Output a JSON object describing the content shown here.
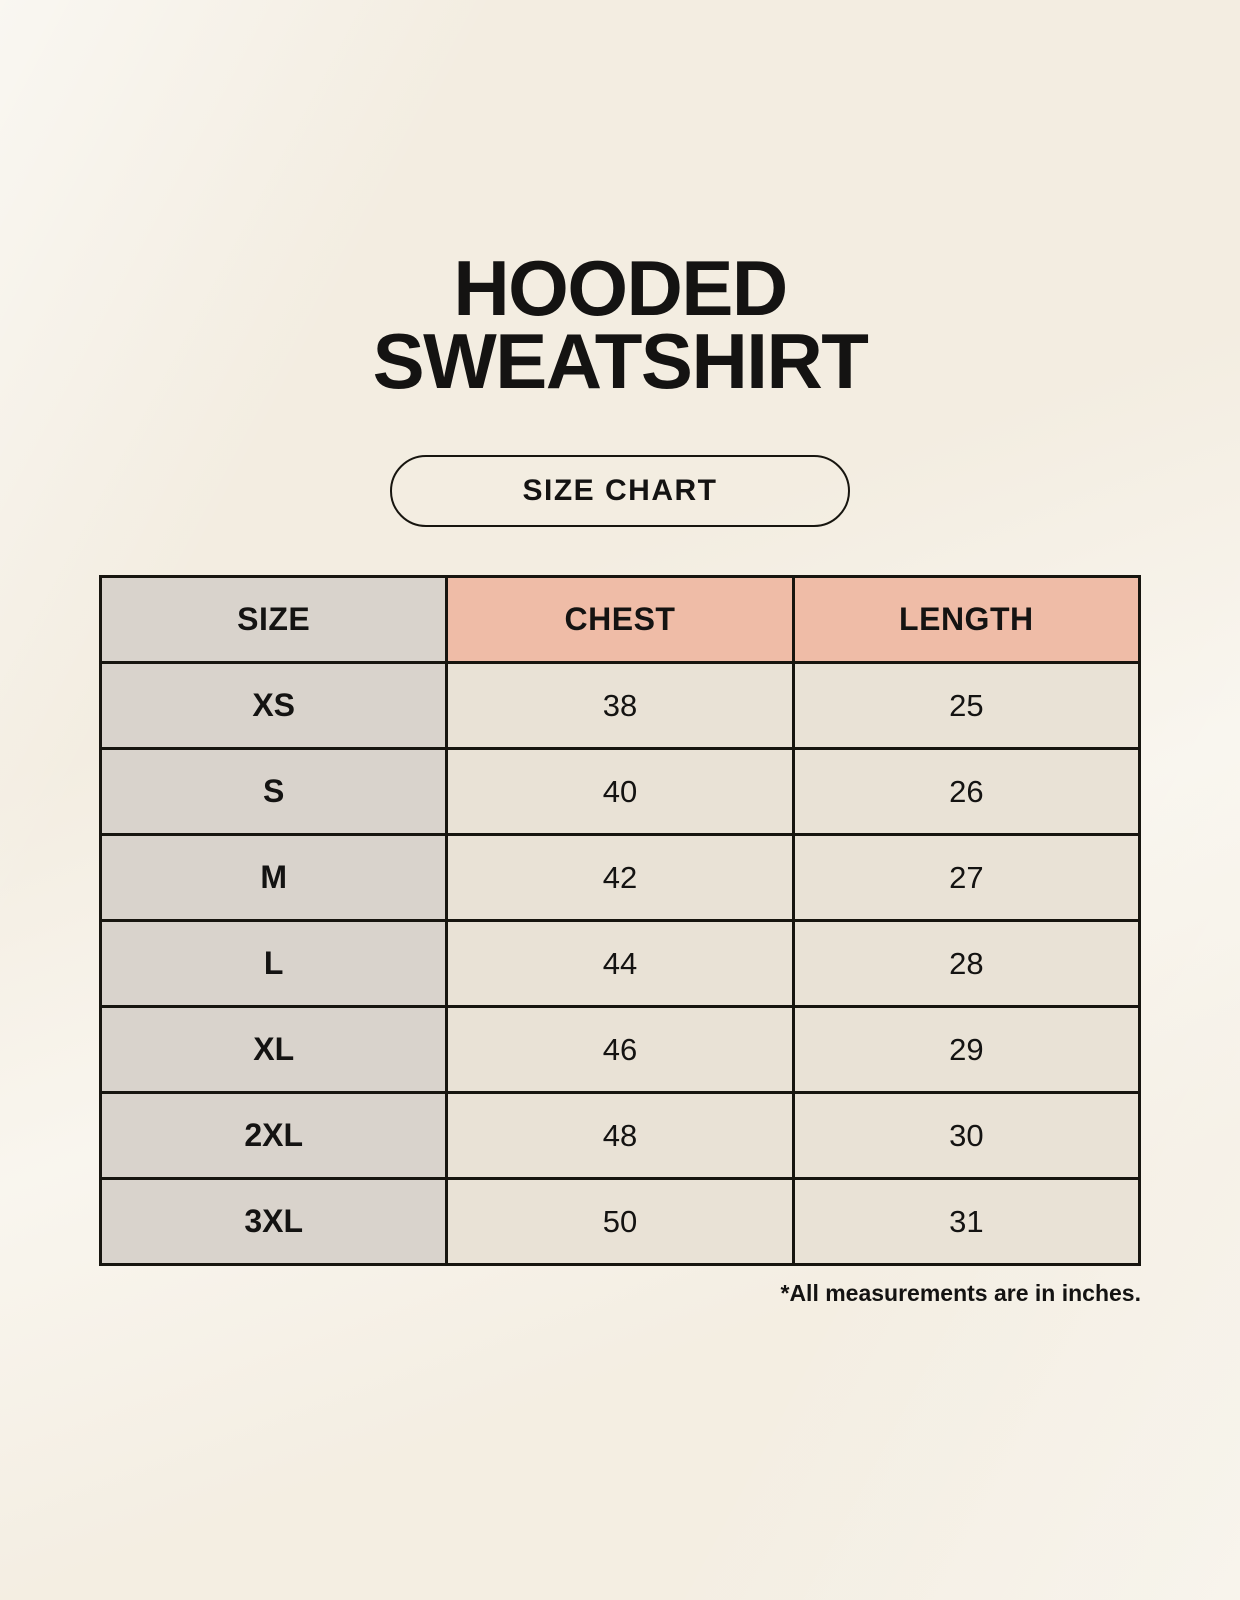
{
  "header": {
    "title_line1": "HOODED",
    "title_line2": "SWEATSHIRT"
  },
  "badge": {
    "label": "SIZE CHART"
  },
  "chart_data": {
    "type": "table",
    "title": "HOODED SWEATSHIRT",
    "subtitle": "SIZE CHART",
    "columns": [
      "SIZE",
      "CHEST",
      "LENGTH"
    ],
    "rows": [
      [
        "XS",
        "38",
        "25"
      ],
      [
        "S",
        "40",
        "26"
      ],
      [
        "M",
        "42",
        "27"
      ],
      [
        "L",
        "44",
        "28"
      ],
      [
        "XL",
        "46",
        "29"
      ],
      [
        "2XL",
        "48",
        "30"
      ],
      [
        "3XL",
        "50",
        "31"
      ]
    ],
    "units": "inches"
  },
  "footnote": {
    "text": "*All measurements are in inches."
  },
  "colors": {
    "background": "#f7f2e8",
    "header_accent": "#efbca7",
    "size_column": "#d9d3cc",
    "cell": "#e9e2d6",
    "border": "#17150f",
    "text": "#141312"
  }
}
